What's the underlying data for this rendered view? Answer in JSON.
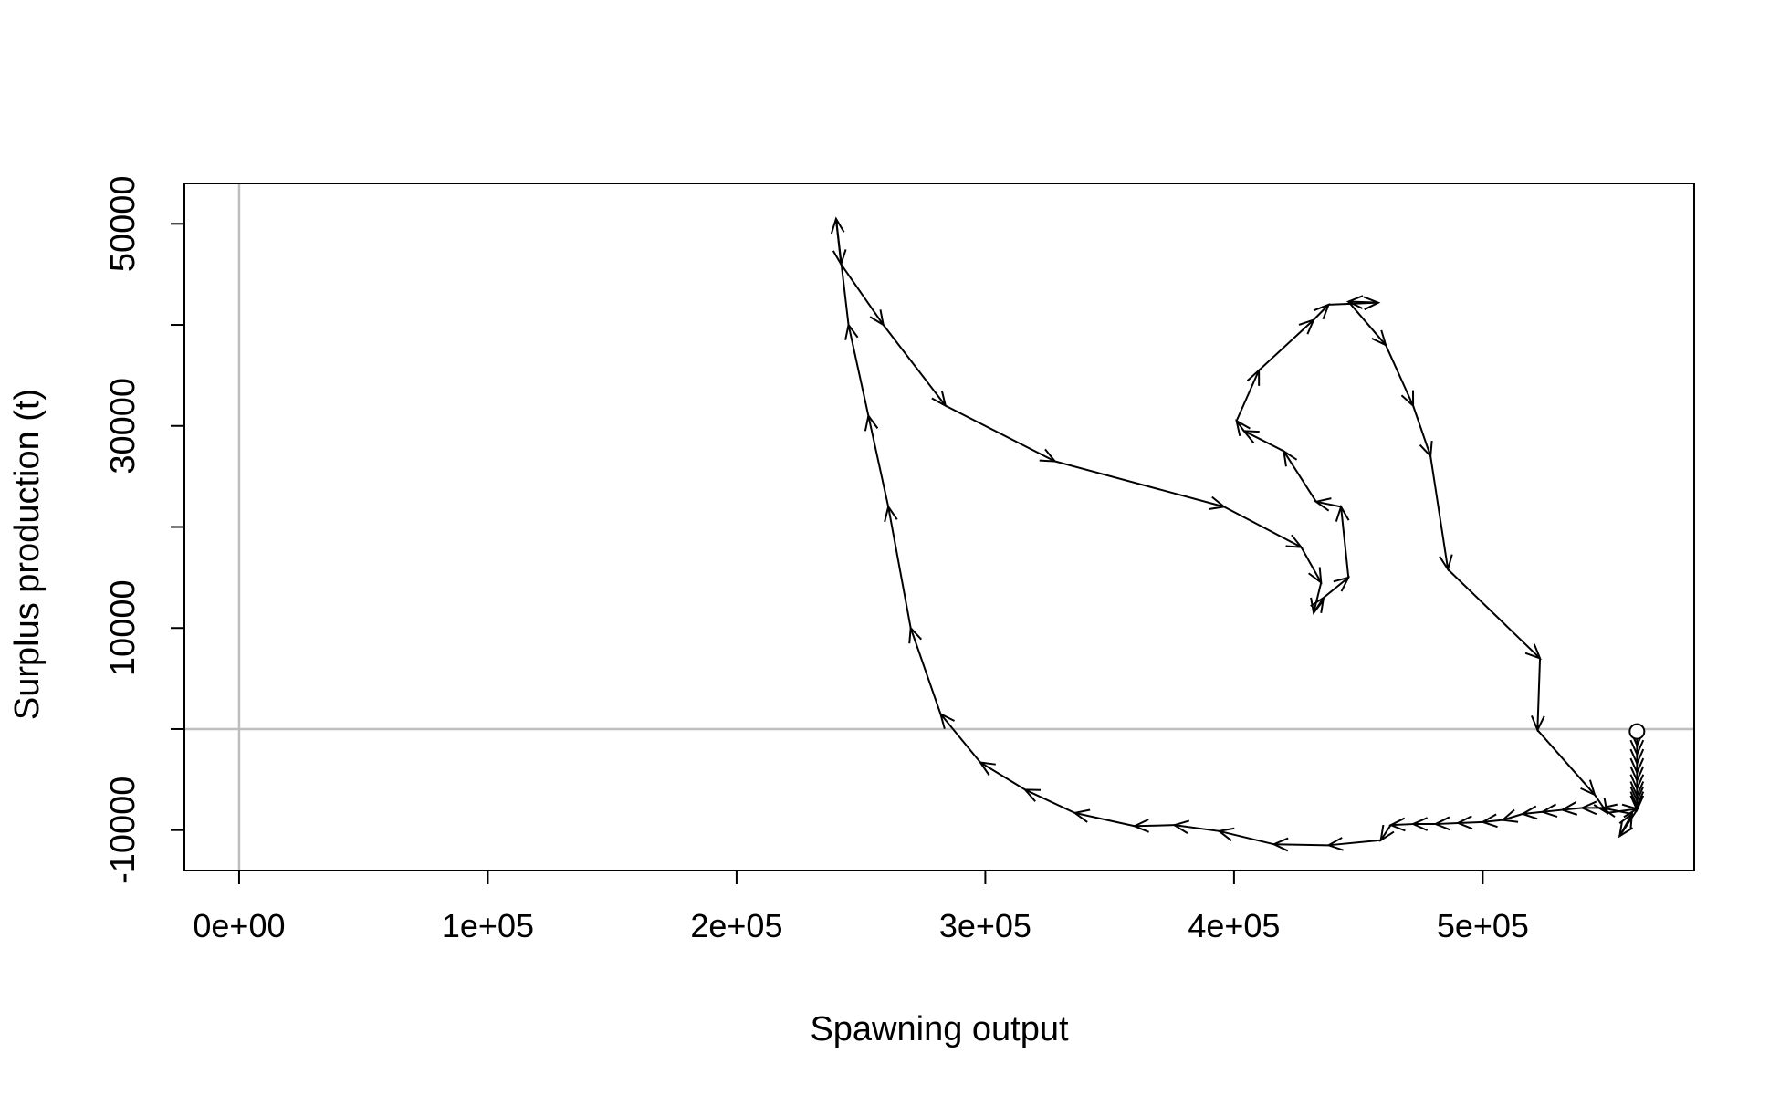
{
  "chart_data": {
    "type": "line",
    "title": "",
    "xlabel": "Spawning output",
    "ylabel": "Surplus production (t)",
    "xlim": [
      -22000,
      585000
    ],
    "ylim": [
      -14000,
      54000
    ],
    "x_ticks": [
      {
        "value": 0,
        "label": "0e+00"
      },
      {
        "value": 100000,
        "label": "1e+05"
      },
      {
        "value": 200000,
        "label": "2e+05"
      },
      {
        "value": 300000,
        "label": "3e+05"
      },
      {
        "value": 400000,
        "label": "4e+05"
      },
      {
        "value": 500000,
        "label": "5e+05"
      }
    ],
    "y_ticks": [
      {
        "value": -10000,
        "label": "-10000"
      },
      {
        "value": 0,
        "label": ""
      },
      {
        "value": 10000,
        "label": "10000"
      },
      {
        "value": 20000,
        "label": ""
      },
      {
        "value": 30000,
        "label": "30000"
      },
      {
        "value": 40000,
        "label": ""
      },
      {
        "value": 50000,
        "label": "50000"
      }
    ],
    "reference_lines": {
      "x": 0,
      "y": 0,
      "color": "#bebebe"
    },
    "start_marker": "open-circle",
    "line_color": "#000000",
    "series": [
      {
        "values": [
          [
            562000,
            -600
          ],
          [
            562000,
            -1600
          ],
          [
            562000,
            -2500
          ],
          [
            562000,
            -3400
          ],
          [
            562000,
            -4300
          ],
          [
            562000,
            -5100
          ],
          [
            562000,
            -5900
          ],
          [
            562000,
            -6600
          ],
          [
            562000,
            -7100
          ],
          [
            562000,
            -7600
          ],
          [
            562000,
            -8000
          ],
          [
            555000,
            -10600
          ],
          [
            560000,
            -8400
          ],
          [
            548000,
            -7800
          ],
          [
            540000,
            -7800
          ],
          [
            532000,
            -8000
          ],
          [
            524000,
            -8200
          ],
          [
            516000,
            -8400
          ],
          [
            508000,
            -9000
          ],
          [
            500000,
            -9200
          ],
          [
            490000,
            -9300
          ],
          [
            481000,
            -9400
          ],
          [
            472000,
            -9400
          ],
          [
            463000,
            -9500
          ],
          [
            459000,
            -11000
          ],
          [
            438000,
            -11500
          ],
          [
            416000,
            -11400
          ],
          [
            394000,
            -10100
          ],
          [
            376000,
            -9500
          ],
          [
            360000,
            -9600
          ],
          [
            336000,
            -8300
          ],
          [
            316000,
            -6000
          ],
          [
            298000,
            -3300
          ],
          [
            282000,
            1500
          ],
          [
            270000,
            10000
          ],
          [
            261000,
            22000
          ],
          [
            253000,
            31000
          ],
          [
            245000,
            40000
          ],
          [
            240000,
            50500
          ],
          [
            242000,
            46000
          ],
          [
            259000,
            40000
          ],
          [
            284000,
            32000
          ],
          [
            328000,
            26500
          ],
          [
            396000,
            22000
          ],
          [
            427000,
            18000
          ],
          [
            435000,
            14500
          ],
          [
            432000,
            11500
          ],
          [
            436000,
            13000
          ],
          [
            446000,
            15000
          ],
          [
            443000,
            22000
          ],
          [
            433000,
            22500
          ],
          [
            420000,
            27500
          ],
          [
            404000,
            29500
          ],
          [
            401000,
            30500
          ],
          [
            410000,
            35500
          ],
          [
            432000,
            40500
          ],
          [
            438000,
            42000
          ],
          [
            458000,
            42200
          ],
          [
            446000,
            42300
          ],
          [
            461000,
            38000
          ],
          [
            472000,
            32000
          ],
          [
            479000,
            27000
          ],
          [
            486000,
            15800
          ],
          [
            523000,
            7000
          ],
          [
            522000,
            -100
          ],
          [
            545000,
            -6500
          ],
          [
            550000,
            -8300
          ],
          [
            562000,
            -7900
          ]
        ]
      }
    ]
  }
}
